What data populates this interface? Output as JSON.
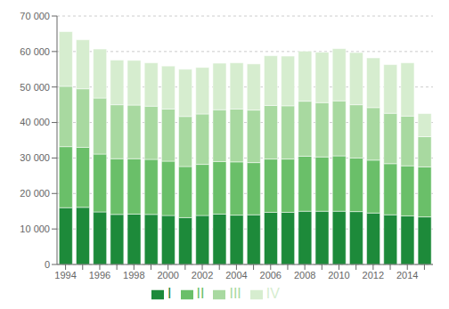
{
  "chart_data": {
    "type": "bar",
    "stacked": true,
    "categories": [
      "1994",
      null,
      "1996",
      null,
      "1998",
      null,
      "2000",
      null,
      "2002",
      null,
      "2004",
      null,
      "2006",
      null,
      "2008",
      null,
      "2010",
      null,
      "2012",
      null,
      "2014",
      null
    ],
    "series": [
      {
        "name": "I",
        "color": "#1d8a3a",
        "values": [
          16000,
          16100,
          14800,
          14100,
          14200,
          14100,
          13800,
          13200,
          13800,
          14200,
          13900,
          14000,
          14700,
          14700,
          15000,
          15000,
          15000,
          14900,
          14500,
          14000,
          13700,
          13400
        ]
      },
      {
        "name": "II",
        "color": "#6abf69",
        "values": [
          17200,
          16900,
          16300,
          15700,
          15600,
          15500,
          15300,
          14400,
          14400,
          14800,
          15000,
          14700,
          15000,
          15000,
          15500,
          15300,
          15600,
          15100,
          14900,
          14400,
          14100,
          14100
        ]
      },
      {
        "name": "III",
        "color": "#a8d9a0",
        "values": [
          17000,
          16500,
          15800,
          15200,
          15100,
          15000,
          14700,
          14100,
          14200,
          14600,
          14900,
          14800,
          15100,
          15000,
          15500,
          15300,
          15500,
          15000,
          14800,
          14200,
          14000,
          8500
        ]
      },
      {
        "name": "IV",
        "color": "#d6edcf",
        "values": [
          15400,
          13800,
          13800,
          12600,
          12600,
          12200,
          12100,
          13300,
          13100,
          13100,
          13000,
          13000,
          14000,
          14000,
          14100,
          14200,
          14700,
          14700,
          14000,
          13700,
          15000,
          6500
        ]
      }
    ],
    "ylim": [
      0,
      70000
    ],
    "yticks": [
      0,
      {
        "value": 10000,
        "label": "10 000"
      },
      {
        "value": 20000,
        "label": "20 000"
      },
      {
        "value": 30000,
        "label": "30 000"
      },
      {
        "value": 40000,
        "label": "40 000"
      },
      {
        "value": 50000,
        "label": "50 000"
      },
      {
        "value": 60000,
        "label": "60 000"
      },
      {
        "value": 70000,
        "label": "70 000"
      }
    ],
    "grid": true,
    "legend": "bottom"
  }
}
